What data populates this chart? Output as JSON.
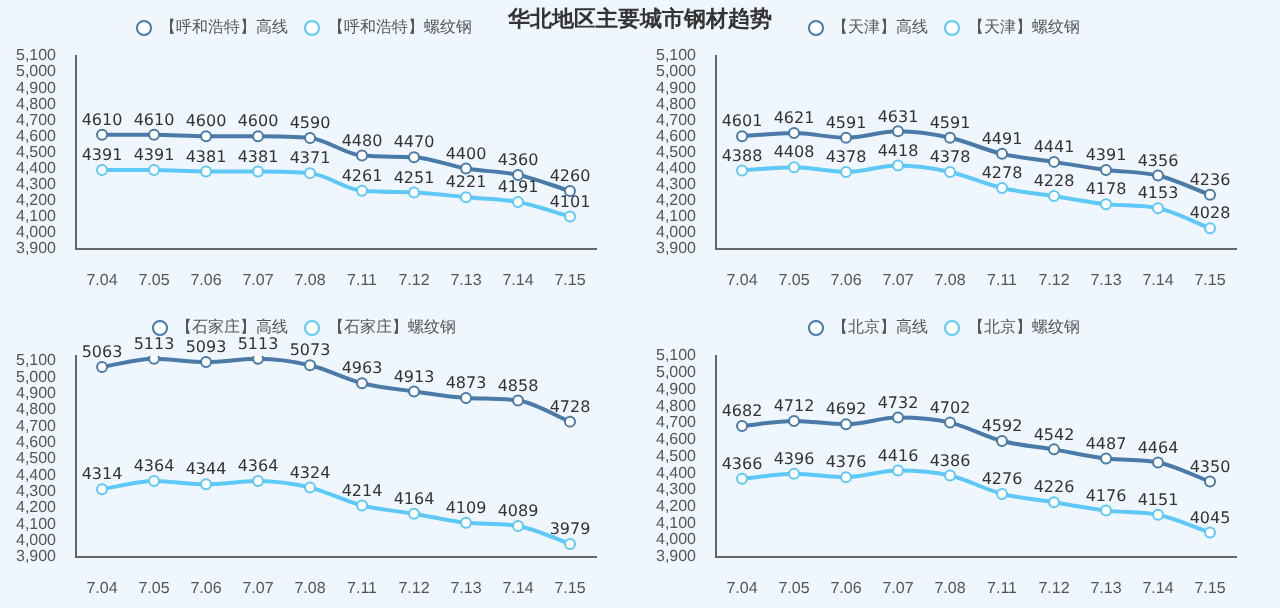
{
  "chart_data": [
    {
      "type": "line",
      "title": "华北地区主要城市钢材趋势",
      "categories": [
        "7.04",
        "7.05",
        "7.06",
        "7.07",
        "7.08",
        "7.11",
        "7.12",
        "7.13",
        "7.14",
        "7.15"
      ],
      "series": [
        {
          "name": "【呼和浩特】高线",
          "color": "#4a7aa8",
          "values": [
            4610,
            4610,
            4600,
            4600,
            4590,
            4480,
            4470,
            4400,
            4360,
            4260
          ]
        },
        {
          "name": "【呼和浩特】螺纹钢",
          "color": "#5ec8f8",
          "values": [
            4391,
            4391,
            4381,
            4381,
            4371,
            4261,
            4251,
            4221,
            4191,
            4101
          ]
        }
      ],
      "ylim": [
        3900,
        5100
      ],
      "yticks": [
        {
          "value": 3900,
          "label": "3,900"
        },
        {
          "value": 4000,
          "label": "4,000"
        },
        {
          "value": 4100,
          "label": "4,100"
        },
        {
          "value": 4200,
          "label": "4,200"
        },
        {
          "value": 4300,
          "label": "4,300"
        },
        {
          "value": 4400,
          "label": "4,400"
        },
        {
          "value": 4500,
          "label": "4,500"
        },
        {
          "value": 4600,
          "label": "4,600"
        },
        {
          "value": 4700,
          "label": "4,700"
        },
        {
          "value": 4800,
          "label": "4,800"
        },
        {
          "value": 4900,
          "label": "4,900"
        },
        {
          "value": 5000,
          "label": "5,000"
        },
        {
          "value": 5100,
          "label": "5,100"
        }
      ],
      "grid": false,
      "legend": "top",
      "marker": "circle",
      "data_labels": true
    },
    {
      "type": "line",
      "categories": [
        "7.04",
        "7.05",
        "7.06",
        "7.07",
        "7.08",
        "7.11",
        "7.12",
        "7.13",
        "7.14",
        "7.15"
      ],
      "series": [
        {
          "name": "【天津】高线",
          "color": "#4a7aa8",
          "values": [
            4601,
            4621,
            4591,
            4631,
            4591,
            4491,
            4441,
            4391,
            4356,
            4236
          ]
        },
        {
          "name": "【天津】螺纹钢",
          "color": "#5ec8f8",
          "values": [
            4388,
            4408,
            4378,
            4418,
            4378,
            4278,
            4228,
            4178,
            4153,
            4028
          ]
        }
      ],
      "ylim": [
        3900,
        5100
      ],
      "yticks": [
        {
          "value": 3900,
          "label": "3,900"
        },
        {
          "value": 4000,
          "label": "4,000"
        },
        {
          "value": 4100,
          "label": "4,100"
        },
        {
          "value": 4200,
          "label": "4,200"
        },
        {
          "value": 4300,
          "label": "4,300"
        },
        {
          "value": 4400,
          "label": "4,400"
        },
        {
          "value": 4500,
          "label": "4,500"
        },
        {
          "value": 4600,
          "label": "4,600"
        },
        {
          "value": 4700,
          "label": "4,700"
        },
        {
          "value": 4800,
          "label": "4,800"
        },
        {
          "value": 4900,
          "label": "4,900"
        },
        {
          "value": 5000,
          "label": "5,000"
        },
        {
          "value": 5100,
          "label": "5,100"
        }
      ],
      "grid": false,
      "legend": "top",
      "marker": "circle",
      "data_labels": true
    },
    {
      "type": "line",
      "categories": [
        "7.04",
        "7.05",
        "7.06",
        "7.07",
        "7.08",
        "7.11",
        "7.12",
        "7.13",
        "7.14",
        "7.15"
      ],
      "series": [
        {
          "name": "【石家庄】高线",
          "color": "#4a7aa8",
          "values": [
            5063,
            5113,
            5093,
            5113,
            5073,
            4963,
            4913,
            4873,
            4858,
            4728
          ]
        },
        {
          "name": "【石家庄】螺纹钢",
          "color": "#5ec8f8",
          "values": [
            4314,
            4364,
            4344,
            4364,
            4324,
            4214,
            4164,
            4109,
            4089,
            3979
          ]
        }
      ],
      "ylim": [
        3900,
        5130
      ],
      "yticks": [
        {
          "value": 3900,
          "label": "3,900"
        },
        {
          "value": 4000,
          "label": "4,000"
        },
        {
          "value": 4100,
          "label": "4,100"
        },
        {
          "value": 4200,
          "label": "4,200"
        },
        {
          "value": 4300,
          "label": "4,300"
        },
        {
          "value": 4400,
          "label": "4,400"
        },
        {
          "value": 4500,
          "label": "4,500"
        },
        {
          "value": 4600,
          "label": "4,600"
        },
        {
          "value": 4700,
          "label": "4,700"
        },
        {
          "value": 4800,
          "label": "4,800"
        },
        {
          "value": 4900,
          "label": "4,900"
        },
        {
          "value": 5000,
          "label": "5,000"
        },
        {
          "value": 5100,
          "label": "5,100"
        }
      ],
      "grid": false,
      "legend": "top",
      "marker": "circle",
      "data_labels": true
    },
    {
      "type": "line",
      "categories": [
        "7.04",
        "7.05",
        "7.06",
        "7.07",
        "7.08",
        "7.11",
        "7.12",
        "7.13",
        "7.14",
        "7.15"
      ],
      "series": [
        {
          "name": "【北京】高线",
          "color": "#4a7aa8",
          "values": [
            4682,
            4712,
            4692,
            4732,
            4702,
            4592,
            4542,
            4487,
            4464,
            4350
          ]
        },
        {
          "name": "【北京】螺纹钢",
          "color": "#5ec8f8",
          "values": [
            4366,
            4396,
            4376,
            4416,
            4386,
            4276,
            4226,
            4176,
            4151,
            4045
          ]
        }
      ],
      "ylim": [
        3900,
        5100
      ],
      "yticks": [
        {
          "value": 3900,
          "label": "3,900"
        },
        {
          "value": 4000,
          "label": "4,000"
        },
        {
          "value": 4100,
          "label": "4,100"
        },
        {
          "value": 4200,
          "label": "4,200"
        },
        {
          "value": 4300,
          "label": "4,300"
        },
        {
          "value": 4400,
          "label": "4,400"
        },
        {
          "value": 4500,
          "label": "4,500"
        },
        {
          "value": 4600,
          "label": "4,600"
        },
        {
          "value": 4700,
          "label": "4,700"
        },
        {
          "value": 4800,
          "label": "4,800"
        },
        {
          "value": 4900,
          "label": "4,900"
        },
        {
          "value": 5000,
          "label": "5,000"
        },
        {
          "value": 5100,
          "label": "5,100"
        }
      ],
      "grid": false,
      "legend": "top",
      "marker": "circle",
      "data_labels": true
    }
  ]
}
